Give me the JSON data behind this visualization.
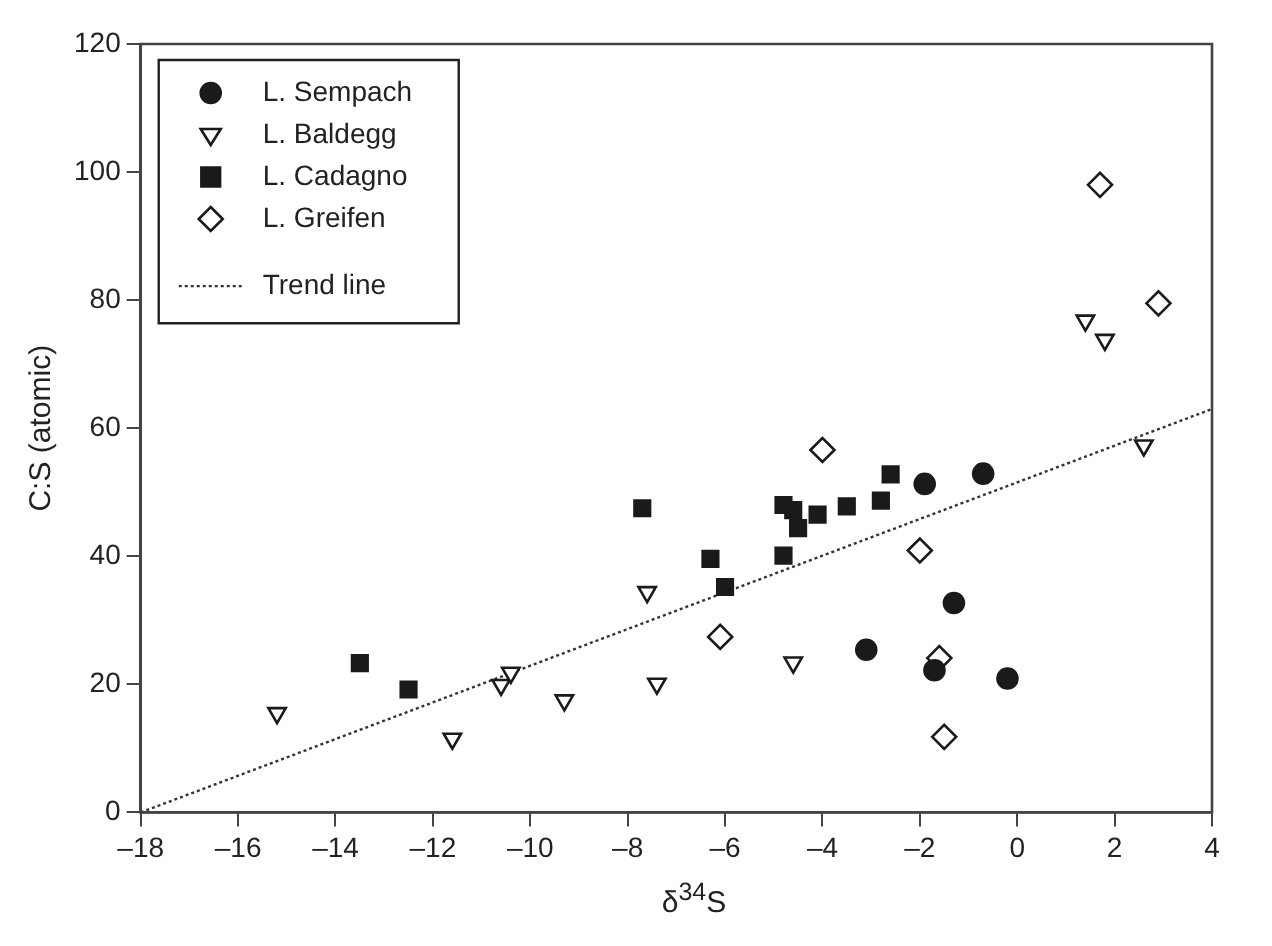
{
  "chart_data": {
    "type": "scatter",
    "xlabel": "δ$^{34}$S",
    "ylabel": "C:S (atomic)",
    "xlim": [
      -18,
      4
    ],
    "xticks": [
      {
        "value": -18,
        "label": "–18"
      },
      {
        "value": -16,
        "label": "–16"
      },
      {
        "value": -14,
        "label": "–14"
      },
      {
        "value": -12,
        "label": "–12"
      },
      {
        "value": -10,
        "label": "–10"
      },
      {
        "value": -8,
        "label": "–8"
      },
      {
        "value": -6,
        "label": "–6"
      },
      {
        "value": -4,
        "label": "–4"
      },
      {
        "value": -2,
        "label": "–2"
      },
      0,
      2,
      4
    ],
    "ylim": [
      0,
      120
    ],
    "yticks": [
      0,
      20,
      40,
      60,
      80,
      100,
      120
    ],
    "grid": false,
    "legend": "top left",
    "series": [
      {
        "name": "L. Sempach",
        "color": "#1a1a1a",
        "marker": "circle",
        "x": [
          -1.9,
          -0.7,
          -1.3,
          -3.1,
          -1.7,
          -0.2
        ],
        "values": [
          51.3,
          52.9,
          32.7,
          25.4,
          22.2,
          20.9
        ]
      },
      {
        "name": "L. Baldegg",
        "color": "#1a1a1a",
        "marker": "triangle",
        "x": [
          -15.2,
          -11.6,
          -10.6,
          -10.4,
          -9.3,
          -7.6,
          -7.4,
          -4.6,
          1.4,
          1.8,
          2.6
        ],
        "values": [
          15.5,
          11.5,
          19.9,
          21.8,
          17.5,
          34.4,
          20.1,
          23.4,
          76.8,
          73.8,
          57.3
        ]
      },
      {
        "name": "L. Cadagno",
        "color": "#1a1a1a",
        "marker": "square",
        "x": [
          -13.5,
          -12.5,
          -7.7,
          -6.3,
          -6.0,
          -4.8,
          -4.8,
          -4.6,
          -4.5,
          -4.1,
          -3.5,
          -2.8,
          -2.6
        ],
        "values": [
          23.3,
          19.2,
          47.5,
          39.6,
          35.2,
          40.1,
          48.0,
          47.2,
          44.4,
          46.5,
          47.8,
          48.7,
          52.8
        ]
      },
      {
        "name": "L. Greifen",
        "color": "#1a1a1a",
        "marker": "diamond",
        "x": [
          1.7,
          2.9,
          -4.0,
          -2.0,
          -6.1,
          -1.6,
          -1.5
        ],
        "values": [
          98.0,
          79.5,
          56.6,
          40.9,
          27.4,
          24.1,
          11.8
        ]
      },
      {
        "name": "Trend line",
        "type": "line",
        "color": "#333333",
        "marker": "none",
        "line_style": "dotted",
        "x": [
          -18,
          4
        ],
        "values": [
          0,
          63
        ]
      }
    ]
  }
}
